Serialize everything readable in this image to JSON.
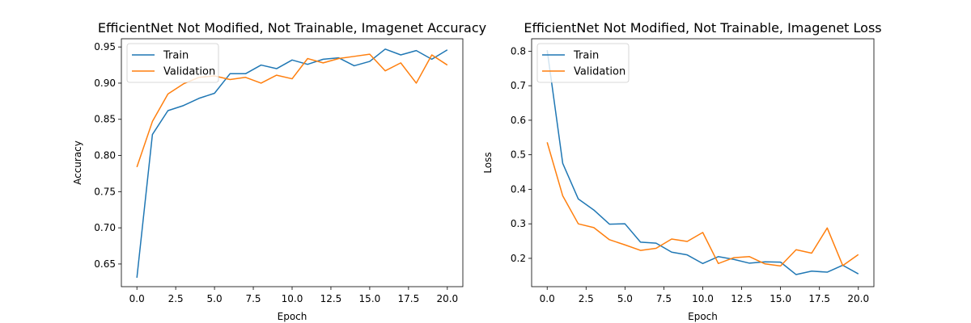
{
  "chart_data": [
    {
      "type": "line",
      "title": "EfficientNet Not Modified, Not Trainable, Imagenet Accuracy",
      "xlabel": "Epoch",
      "ylabel": "Accuracy",
      "xlim": [
        -1,
        21
      ],
      "ylim": [
        0.61866,
        0.96134
      ],
      "xticks": [
        0.0,
        2.5,
        5.0,
        7.5,
        10.0,
        12.5,
        15.0,
        17.5,
        20.0
      ],
      "xtick_labels": [
        "0.0",
        "2.5",
        "5.0",
        "7.5",
        "10.0",
        "12.5",
        "15.0",
        "17.5",
        "20.0"
      ],
      "yticks": [
        0.65,
        0.7,
        0.75,
        0.8,
        0.85,
        0.9,
        0.95
      ],
      "ytick_labels": [
        "0.65",
        "0.70",
        "0.75",
        "0.80",
        "0.85",
        "0.90",
        "0.95"
      ],
      "legend_position": "top-left",
      "grid": false,
      "x": [
        0,
        1,
        2,
        3,
        4,
        5,
        6,
        7,
        8,
        9,
        10,
        11,
        12,
        13,
        14,
        15,
        16,
        17,
        18,
        19,
        20
      ],
      "series": [
        {
          "name": "Train",
          "color": "#1f77b4",
          "values": [
            0.631,
            0.829,
            0.862,
            0.869,
            0.879,
            0.886,
            0.913,
            0.913,
            0.925,
            0.92,
            0.932,
            0.926,
            0.933,
            0.935,
            0.924,
            0.93,
            0.947,
            0.939,
            0.945,
            0.933,
            0.946
          ]
        },
        {
          "name": "Validation",
          "color": "#ff7f0e",
          "values": [
            0.784,
            0.847,
            0.885,
            0.899,
            0.908,
            0.91,
            0.905,
            0.908,
            0.9,
            0.911,
            0.906,
            0.934,
            0.928,
            0.934,
            0.937,
            0.94,
            0.917,
            0.928,
            0.9,
            0.939,
            0.925
          ]
        }
      ]
    },
    {
      "type": "line",
      "title": "EfficientNet Not Modified, Not Trainable, Imagenet Loss",
      "xlabel": "Epoch",
      "ylabel": "Loss",
      "xlim": [
        -1,
        21
      ],
      "ylim": [
        0.118,
        0.836
      ],
      "xticks": [
        0.0,
        2.5,
        5.0,
        7.5,
        10.0,
        12.5,
        15.0,
        17.5,
        20.0
      ],
      "xtick_labels": [
        "0.0",
        "2.5",
        "5.0",
        "7.5",
        "10.0",
        "12.5",
        "15.0",
        "17.5",
        "20.0"
      ],
      "yticks": [
        0.2,
        0.3,
        0.4,
        0.5,
        0.6,
        0.7,
        0.8
      ],
      "ytick_labels": [
        "0.2",
        "0.3",
        "0.4",
        "0.5",
        "0.6",
        "0.7",
        "0.8"
      ],
      "legend_position": "top-left",
      "grid": false,
      "x": [
        0,
        1,
        2,
        3,
        4,
        5,
        6,
        7,
        8,
        9,
        10,
        11,
        12,
        13,
        14,
        15,
        16,
        17,
        18,
        19,
        20
      ],
      "series": [
        {
          "name": "Train",
          "color": "#1f77b4",
          "values": [
            0.803,
            0.475,
            0.372,
            0.34,
            0.299,
            0.3,
            0.247,
            0.244,
            0.218,
            0.21,
            0.185,
            0.205,
            0.197,
            0.186,
            0.19,
            0.189,
            0.153,
            0.163,
            0.16,
            0.18,
            0.155
          ]
        },
        {
          "name": "Validation",
          "color": "#ff7f0e",
          "values": [
            0.536,
            0.381,
            0.3,
            0.289,
            0.254,
            0.239,
            0.223,
            0.229,
            0.256,
            0.249,
            0.275,
            0.185,
            0.202,
            0.205,
            0.184,
            0.178,
            0.225,
            0.215,
            0.288,
            0.179,
            0.211
          ]
        }
      ]
    }
  ]
}
